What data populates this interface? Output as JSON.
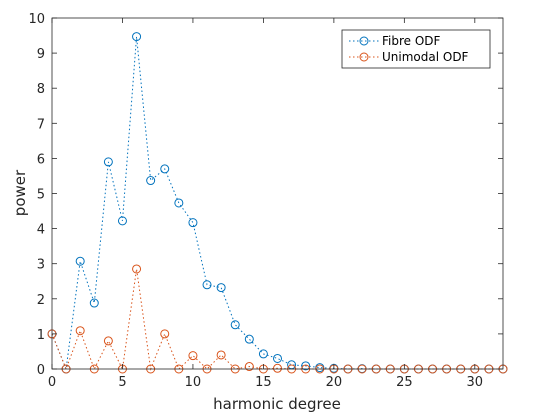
{
  "chart_data": {
    "type": "line",
    "xlabel": "harmonic degree",
    "ylabel": "power",
    "xlim": [
      0,
      32
    ],
    "ylim": [
      0,
      10
    ],
    "x_ticks": [
      0,
      5,
      10,
      15,
      20,
      25,
      30
    ],
    "y_ticks": [
      0,
      1,
      2,
      3,
      4,
      5,
      6,
      7,
      8,
      9,
      10
    ],
    "grid": false,
    "legend_position": "top-right",
    "line_style": "dotted",
    "marker": "circle",
    "series": [
      {
        "name": "Fibre ODF",
        "color": "#0072BD",
        "x": [
          0,
          1,
          2,
          3,
          4,
          5,
          6,
          7,
          8,
          9,
          10,
          11,
          12,
          13,
          14,
          15,
          16,
          17,
          18,
          19,
          20,
          21,
          22,
          23,
          24,
          25,
          26,
          27,
          28,
          29,
          30,
          31,
          32
        ],
        "y": [
          1.0,
          0,
          3.07,
          1.88,
          5.9,
          4.22,
          9.47,
          5.37,
          5.7,
          4.73,
          4.17,
          2.4,
          2.32,
          1.26,
          0.85,
          0.43,
          0.3,
          0.12,
          0.09,
          0.04,
          0.02,
          0,
          0.01,
          0,
          0,
          0,
          0,
          0,
          0,
          0,
          0,
          0,
          0
        ]
      },
      {
        "name": "Unimodal ODF",
        "color": "#D95319",
        "x": [
          0,
          1,
          2,
          3,
          4,
          5,
          6,
          7,
          8,
          9,
          10,
          11,
          12,
          13,
          14,
          15,
          16,
          17,
          18,
          19,
          20,
          21,
          22,
          23,
          24,
          25,
          26,
          27,
          28,
          29,
          30,
          31,
          32
        ],
        "y": [
          1.0,
          0,
          1.09,
          0,
          0.8,
          0,
          2.85,
          0,
          1.0,
          0,
          0.38,
          0,
          0.4,
          0,
          0.07,
          0,
          0.02,
          0,
          0,
          0,
          0,
          0,
          0,
          0,
          0,
          0,
          0,
          0,
          0,
          0,
          0,
          0,
          0
        ]
      }
    ]
  }
}
